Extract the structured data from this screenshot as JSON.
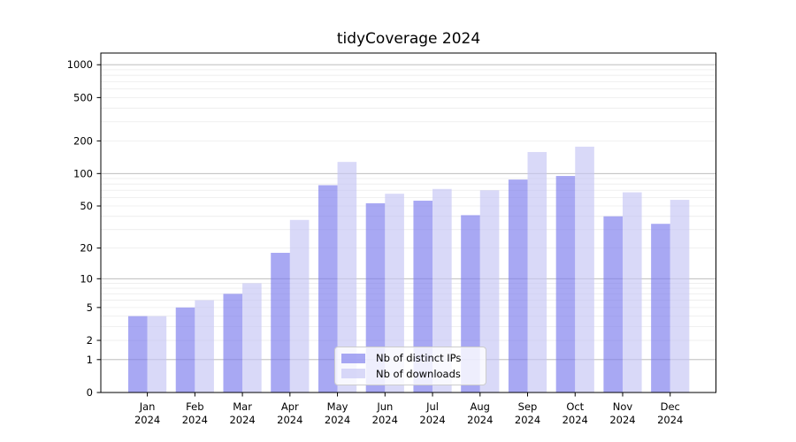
{
  "chart_data": {
    "type": "bar",
    "title": "tidyCoverage 2024",
    "categories": [
      "Jan",
      "Feb",
      "Mar",
      "Apr",
      "May",
      "Jun",
      "Jul",
      "Aug",
      "Sep",
      "Oct",
      "Nov",
      "Dec"
    ],
    "x_tick_year": "2024",
    "series": [
      {
        "name": "Nb of distinct IPs",
        "color": "#7a7aed",
        "alpha": 0.65,
        "values": [
          4,
          5,
          7,
          18,
          78,
          53,
          56,
          41,
          88,
          95,
          40,
          34
        ]
      },
      {
        "name": "Nb of downloads",
        "color": "#c5c5f5",
        "alpha": 0.65,
        "values": [
          4,
          6,
          9,
          37,
          128,
          65,
          72,
          70,
          158,
          177,
          67,
          57
        ]
      }
    ],
    "y_scale": "log1p",
    "ylim": [
      0,
      1280
    ],
    "y_ticks": [
      0,
      1,
      2,
      5,
      10,
      20,
      50,
      100,
      200,
      500,
      1000
    ],
    "y_major_gridlines": [
      1,
      10,
      100,
      1000
    ],
    "y_minor_gridlines": [
      2,
      3,
      4,
      5,
      6,
      7,
      8,
      9,
      20,
      30,
      40,
      50,
      60,
      70,
      80,
      90,
      200,
      300,
      400,
      500,
      600,
      700,
      800,
      900
    ],
    "grid": true,
    "legend_position": "lower center",
    "style": {
      "major_grid_color": "#b4b4b4",
      "minor_grid_color": "#ececec",
      "spine_color": "#000000",
      "text_color": "#000000",
      "background": "#ffffff"
    }
  }
}
